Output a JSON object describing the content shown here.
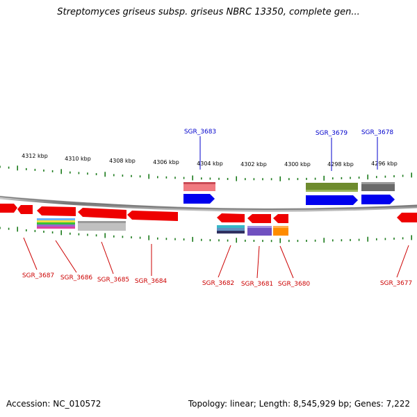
{
  "title": "Streptomyces griseus subsp. griseus NBRC 13350, complete gen...",
  "footer": {
    "accession": "Accession: NC_010572",
    "summary": "Topology: linear; Length: 8,545,929 bp; Genes: 7,222"
  },
  "colors": {
    "top_label": "#0000cc",
    "bottom_label": "#cc0000",
    "ticks": "#1a7a1a",
    "backbone": "#888888"
  },
  "ruler": [
    {
      "label": "4312 kbp",
      "kbp": 4312
    },
    {
      "label": "4310 kbp",
      "kbp": 4310
    },
    {
      "label": "4308 kbp",
      "kbp": 4308
    },
    {
      "label": "4306 kbp",
      "kbp": 4306
    },
    {
      "label": "4304 kbp",
      "kbp": 4304
    },
    {
      "label": "4302 kbp",
      "kbp": 4302
    },
    {
      "label": "4300 kbp",
      "kbp": 4300
    },
    {
      "label": "4298 kbp",
      "kbp": 4298
    },
    {
      "label": "4296 kbp",
      "kbp": 4296
    }
  ],
  "labels": {
    "top": [
      "SGR_3683",
      "SGR_3679",
      "SGR_3678"
    ],
    "bottom": [
      "SGR_3687",
      "SGR_3686",
      "SGR_3685",
      "SGR_3684",
      "SGR_3682",
      "SGR_3681",
      "SGR_3680",
      "SGR_3677"
    ]
  }
}
